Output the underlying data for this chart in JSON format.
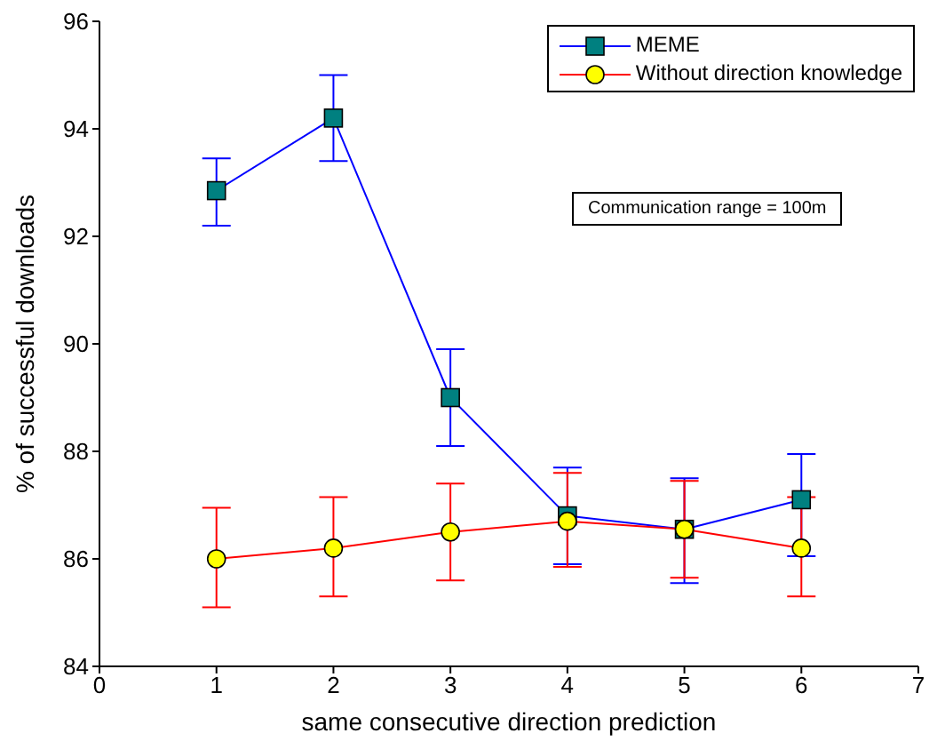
{
  "chart_data": {
    "type": "line",
    "xlabel": "same consecutive direction prediction",
    "ylabel": "% of successful downloads",
    "x": [
      1,
      2,
      3,
      4,
      5,
      6
    ],
    "xlim": [
      0,
      7
    ],
    "xticks": [
      0,
      1,
      2,
      3,
      4,
      5,
      6,
      7
    ],
    "ylim": [
      84,
      96
    ],
    "yticks": [
      84,
      86,
      88,
      90,
      92,
      94,
      96
    ],
    "grid": false,
    "legend": "top right",
    "annotations": [
      "Communication range = 100m"
    ],
    "series": [
      {
        "name": "MEME",
        "color": "#0000ff",
        "marker": "square",
        "colors": [
          "#008080",
          "#008080",
          "#008080",
          "#008080",
          "#008080",
          "#008080"
        ],
        "values": [
          92.85,
          94.2,
          89.0,
          86.8,
          86.55,
          87.1
        ],
        "errors": [
          [
            92.2,
            93.45
          ],
          [
            93.4,
            95.0
          ],
          [
            88.1,
            89.9
          ],
          [
            85.9,
            87.7
          ],
          [
            85.55,
            87.5
          ],
          [
            86.05,
            87.95
          ]
        ]
      },
      {
        "name": "Without direction knowledge",
        "color": "#ff0000",
        "marker": "circle",
        "colors": [
          "#ffff00",
          "#ffff00",
          "#ffff00",
          "#ffff00",
          "#ffff00",
          "#ffff00"
        ],
        "values": [
          86.0,
          86.2,
          86.5,
          86.7,
          86.55,
          86.2
        ],
        "errors": [
          [
            85.1,
            86.95
          ],
          [
            85.3,
            87.15
          ],
          [
            85.6,
            87.4
          ],
          [
            85.85,
            87.6
          ],
          [
            85.65,
            87.45
          ],
          [
            85.3,
            87.15
          ]
        ]
      }
    ]
  }
}
